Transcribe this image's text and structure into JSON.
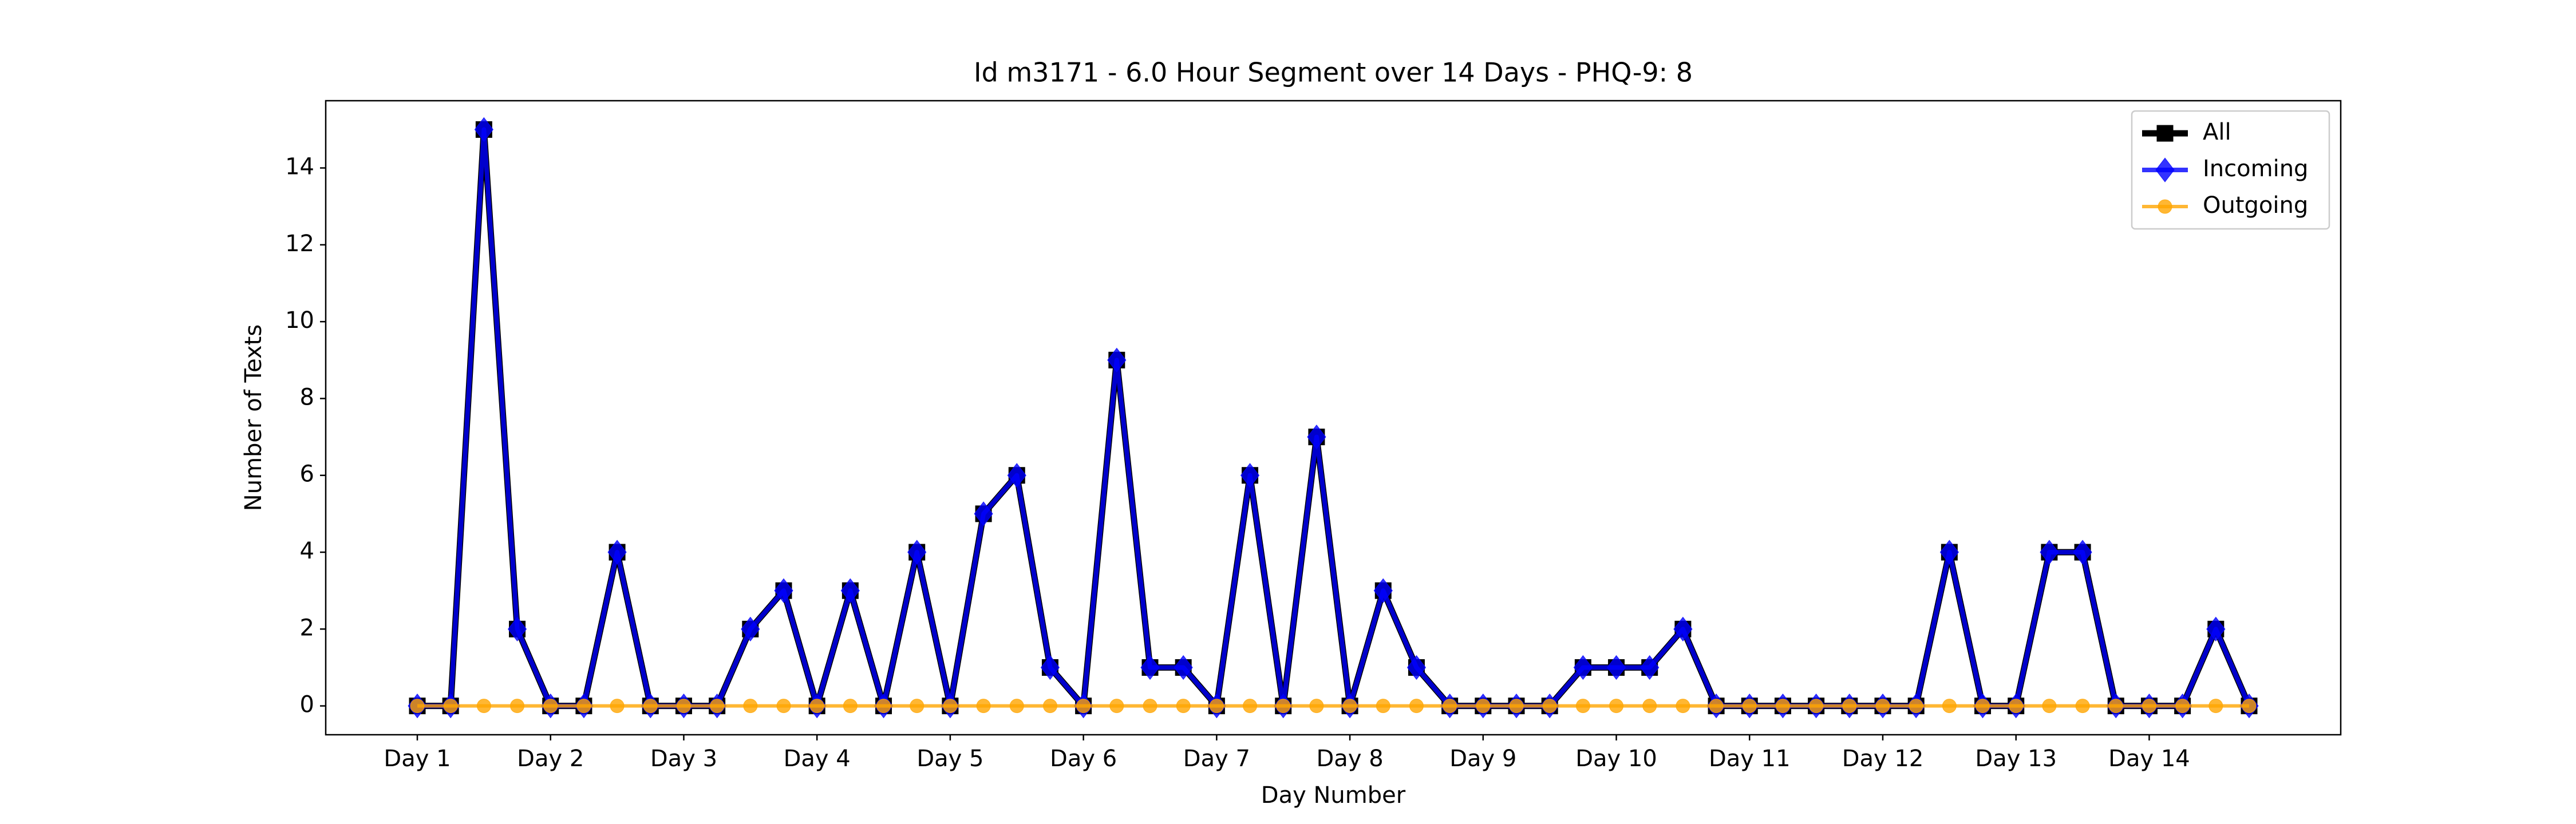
{
  "chart_data": {
    "type": "line",
    "title": "Id m3171 - 6.0 Hour Segment over 14 Days - PHQ-9: 8",
    "xlabel": "Day Number",
    "ylabel": "Number of Texts",
    "x": [
      0,
      1,
      2,
      3,
      4,
      5,
      6,
      7,
      8,
      9,
      10,
      11,
      12,
      13,
      14,
      15,
      16,
      17,
      18,
      19,
      20,
      21,
      22,
      23,
      24,
      25,
      26,
      27,
      28,
      29,
      30,
      31,
      32,
      33,
      34,
      35,
      36,
      37,
      38,
      39,
      40,
      41,
      42,
      43,
      44,
      45,
      46,
      47,
      48,
      49,
      50,
      51,
      52,
      53,
      54,
      55
    ],
    "series": [
      {
        "name": "All",
        "color": "#000000",
        "marker": "square",
        "values": [
          0,
          0,
          15,
          2,
          0,
          0,
          4,
          0,
          0,
          0,
          2,
          3,
          0,
          3,
          0,
          4,
          0,
          5,
          6,
          1,
          0,
          9,
          1,
          1,
          0,
          6,
          0,
          7,
          0,
          3,
          1,
          0,
          0,
          0,
          0,
          1,
          1,
          1,
          2,
          0,
          0,
          0,
          0,
          0,
          0,
          0,
          4,
          0,
          0,
          4,
          4,
          0,
          0,
          0,
          2,
          0
        ]
      },
      {
        "name": "Incoming",
        "color": "#0000ff",
        "marker": "diamond",
        "values": [
          0,
          0,
          15,
          2,
          0,
          0,
          4,
          0,
          0,
          0,
          2,
          3,
          0,
          3,
          0,
          4,
          0,
          5,
          6,
          1,
          0,
          9,
          1,
          1,
          0,
          6,
          0,
          7,
          0,
          3,
          1,
          0,
          0,
          0,
          0,
          1,
          1,
          1,
          2,
          0,
          0,
          0,
          0,
          0,
          0,
          0,
          4,
          0,
          0,
          4,
          4,
          0,
          0,
          0,
          2,
          0
        ]
      },
      {
        "name": "Outgoing",
        "color": "#ffa500",
        "marker": "circle",
        "values": [
          0,
          0,
          0,
          0,
          0,
          0,
          0,
          0,
          0,
          0,
          0,
          0,
          0,
          0,
          0,
          0,
          0,
          0,
          0,
          0,
          0,
          0,
          0,
          0,
          0,
          0,
          0,
          0,
          0,
          0,
          0,
          0,
          0,
          0,
          0,
          0,
          0,
          0,
          0,
          0,
          0,
          0,
          0,
          0,
          0,
          0,
          0,
          0,
          0,
          0,
          0,
          0,
          0,
          0,
          0,
          0
        ]
      }
    ],
    "xlim": [
      -2.75,
      57.75
    ],
    "xticks": [
      {
        "value": 0,
        "label": "Day 1"
      },
      {
        "value": 4,
        "label": "Day 2"
      },
      {
        "value": 8,
        "label": "Day 3"
      },
      {
        "value": 12,
        "label": "Day 4"
      },
      {
        "value": 16,
        "label": "Day 5"
      },
      {
        "value": 20,
        "label": "Day 6"
      },
      {
        "value": 24,
        "label": "Day 7"
      },
      {
        "value": 28,
        "label": "Day 8"
      },
      {
        "value": 32,
        "label": "Day 9"
      },
      {
        "value": 36,
        "label": "Day 10"
      },
      {
        "value": 40,
        "label": "Day 11"
      },
      {
        "value": 44,
        "label": "Day 12"
      },
      {
        "value": 48,
        "label": "Day 13"
      },
      {
        "value": 52,
        "label": "Day 14"
      }
    ],
    "ylim": [
      -0.75,
      15.75
    ],
    "yticks": [
      0,
      2,
      4,
      6,
      8,
      10,
      12,
      14
    ],
    "legend": "upper right"
  }
}
